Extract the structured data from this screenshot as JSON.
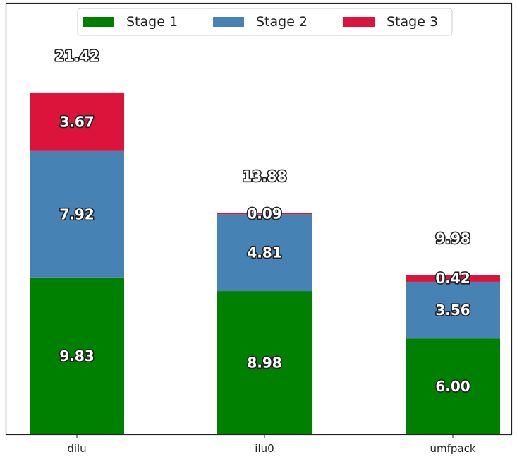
{
  "chart_data": {
    "type": "bar",
    "stacked": true,
    "categories": [
      "dilu",
      "ilu0",
      "umfpack"
    ],
    "series": [
      {
        "name": "Stage 1",
        "color": "#008000",
        "values": [
          9.83,
          8.98,
          6.0
        ],
        "labels": [
          "9.83",
          "8.98",
          "6.00"
        ]
      },
      {
        "name": "Stage 2",
        "color": "#4682B4",
        "values": [
          7.92,
          4.81,
          3.56
        ],
        "labels": [
          "7.92",
          "4.81",
          "3.56"
        ]
      },
      {
        "name": "Stage 3",
        "color": "#DC143C",
        "values": [
          3.67,
          0.09,
          0.42
        ],
        "labels": [
          "3.67",
          "0.09",
          "0.42"
        ]
      }
    ],
    "totals": [
      "21.42",
      "13.88",
      "9.98"
    ],
    "title": "",
    "xlabel": "",
    "ylabel": "",
    "ylim": [
      0,
      27
    ],
    "grid": false,
    "legend_position": "top-center"
  }
}
